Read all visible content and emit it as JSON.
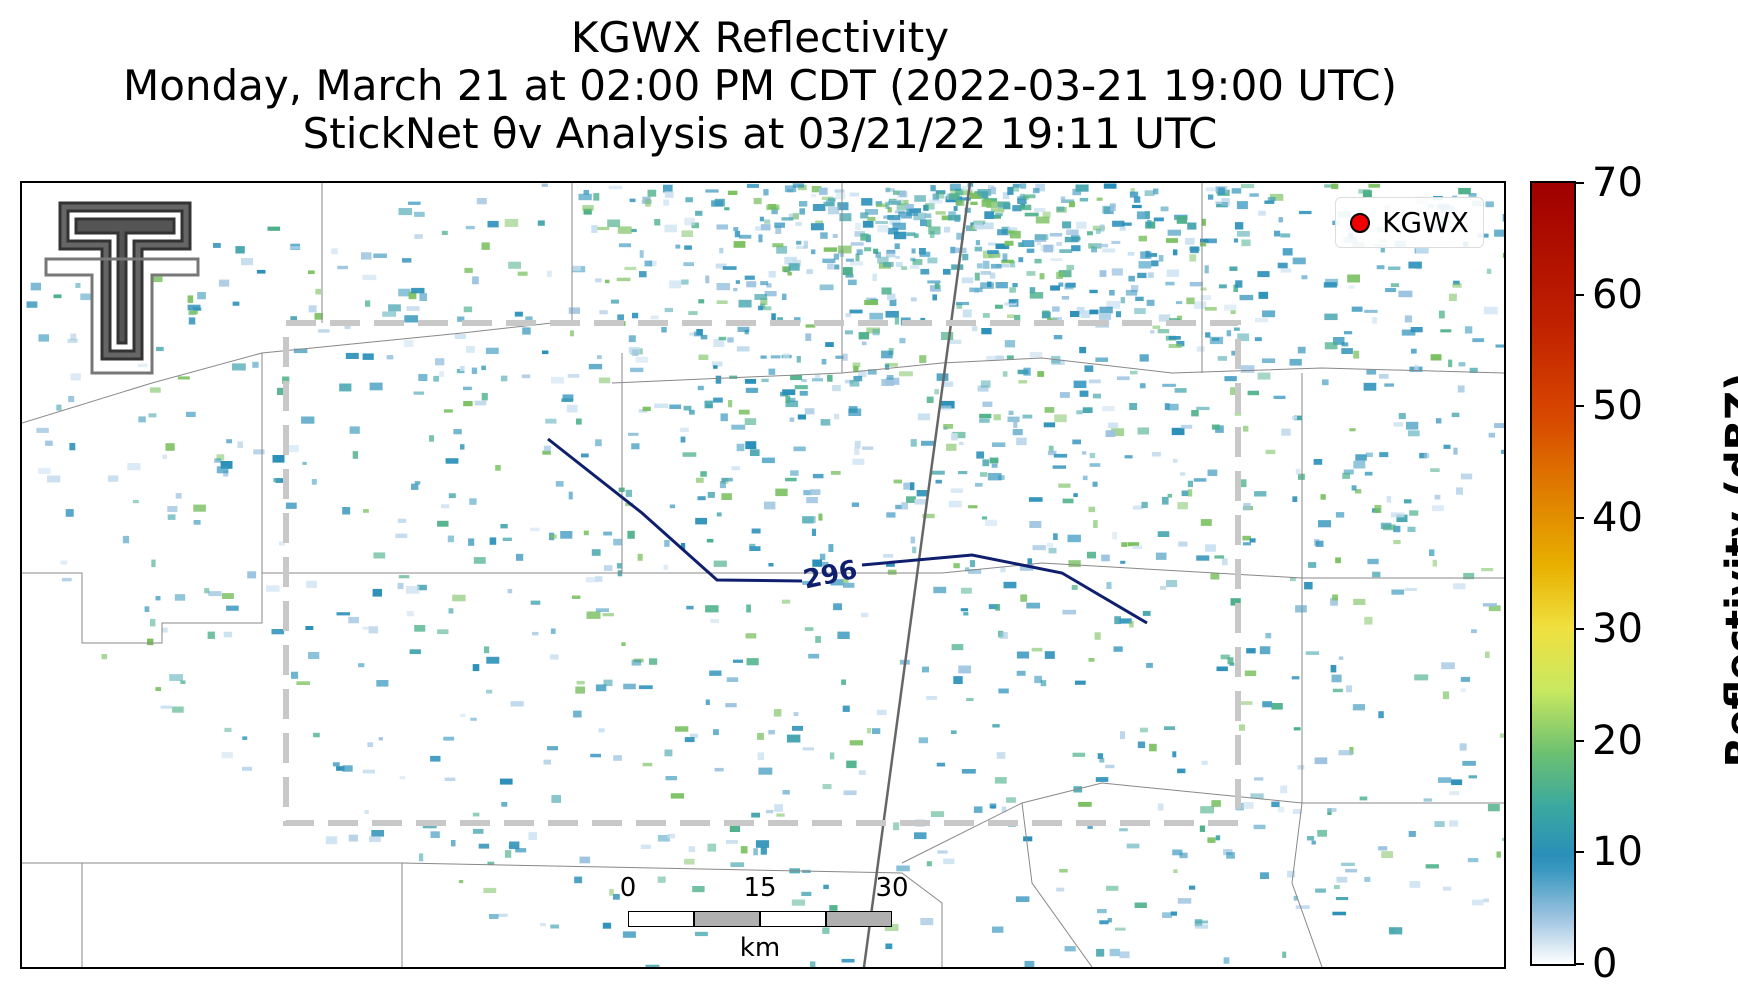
{
  "title": {
    "line1": "KGWX Reflectivity",
    "line2": "Monday, March 21 at 02:00 PM CDT (2022-03-21 19:00 UTC)",
    "line3": "StickNet θv Analysis at 03/21/22 19:11 UTC"
  },
  "legend": {
    "label": "KGWX",
    "marker_color": "#ee0000"
  },
  "contour": {
    "label": "296",
    "color": "#0f1f6e"
  },
  "scalebar": {
    "ticks": [
      "0",
      "15",
      "30"
    ],
    "unit": "km"
  },
  "colorbar": {
    "title": "Reflectivity (dBZ)",
    "ticks": [
      "0",
      "10",
      "20",
      "30",
      "40",
      "50",
      "60",
      "70"
    ]
  },
  "colors": {
    "analysis_box": "#c8c8c8",
    "county_lines": "#888888",
    "radar_dominant": "#2a8fb8"
  },
  "logo": {
    "name": "texas-tech-double-t-logo"
  }
}
